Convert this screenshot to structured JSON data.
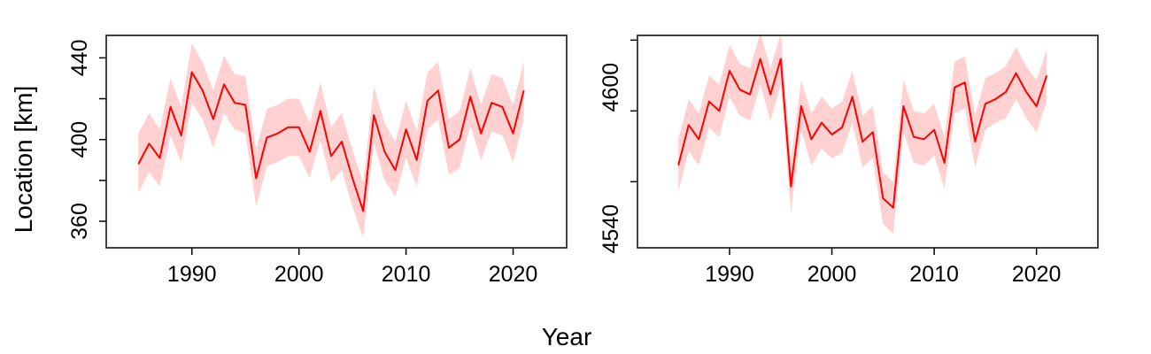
{
  "figure": {
    "ylabel": "Location [km]",
    "xlabel": "Year",
    "line_color": "#ff0000",
    "band_color": "#ffb3b3"
  },
  "chart_data": [
    {
      "type": "line",
      "xlim": [
        1982,
        2025
      ],
      "ylim": [
        347,
        451
      ],
      "xticks": [
        1990,
        2000,
        2010,
        2020
      ],
      "yticks": [
        360,
        400,
        440
      ],
      "x": [
        1985,
        1986,
        1987,
        1988,
        1989,
        1990,
        1991,
        1992,
        1993,
        1994,
        1995,
        1996,
        1997,
        1998,
        1999,
        2000,
        2001,
        2002,
        2003,
        2004,
        2005,
        2006,
        2007,
        2008,
        2009,
        2010,
        2011,
        2012,
        2013,
        2014,
        2015,
        2016,
        2017,
        2018,
        2019,
        2020,
        2021
      ],
      "series": [
        {
          "y": [
            388,
            398,
            391,
            416,
            402,
            433,
            424,
            410,
            427,
            418,
            417,
            381,
            401,
            403,
            406,
            406,
            394,
            414,
            392,
            399,
            381,
            365,
            412,
            394,
            385,
            405,
            390,
            419,
            424,
            396,
            400,
            421,
            403,
            418,
            416,
            403,
            424
          ],
          "lower": [
            374,
            384,
            377,
            402,
            389,
            418,
            410,
            396,
            413,
            405,
            403,
            367,
            387,
            389,
            392,
            392,
            381,
            400,
            379,
            385,
            367,
            352,
            398,
            380,
            372,
            391,
            377,
            405,
            410,
            383,
            386,
            407,
            390,
            404,
            402,
            389,
            410
          ],
          "upper": [
            403,
            413,
            405,
            430,
            416,
            447,
            438,
            424,
            441,
            432,
            431,
            395,
            415,
            417,
            420,
            420,
            408,
            428,
            406,
            413,
            395,
            379,
            426,
            408,
            399,
            419,
            404,
            433,
            438,
            410,
            414,
            435,
            417,
            432,
            430,
            417,
            438
          ]
        }
      ]
    },
    {
      "type": "line",
      "xlim": [
        1981,
        2026
      ],
      "ylim": [
        4532,
        4622
      ],
      "xticks": [
        1990,
        2000,
        2010,
        2020
      ],
      "yticks": [
        4540,
        4600
      ],
      "x": [
        1985,
        1986,
        1987,
        1988,
        1989,
        1990,
        1991,
        1992,
        1993,
        1994,
        1995,
        1996,
        1997,
        1998,
        1999,
        2000,
        2001,
        2002,
        2003,
        2004,
        2005,
        2006,
        2007,
        2008,
        2009,
        2010,
        2011,
        2012,
        2013,
        2014,
        2015,
        2016,
        2017,
        2018,
        2019,
        2020,
        2021
      ],
      "series": [
        {
          "y": [
            4567,
            4584,
            4578,
            4594,
            4590,
            4607,
            4599,
            4597,
            4612,
            4597,
            4612,
            4558,
            4592,
            4578,
            4585,
            4580,
            4583,
            4596,
            4577,
            4581,
            4553,
            4549,
            4592,
            4579,
            4578,
            4582,
            4568,
            4600,
            4602,
            4577,
            4593,
            4595,
            4598,
            4606,
            4598,
            4592,
            4605
          ],
          "lower": [
            4556,
            4573,
            4567,
            4583,
            4579,
            4596,
            4588,
            4586,
            4601,
            4586,
            4601,
            4547,
            4582,
            4567,
            4574,
            4570,
            4572,
            4585,
            4566,
            4570,
            4542,
            4538,
            4581,
            4568,
            4567,
            4571,
            4557,
            4589,
            4591,
            4566,
            4582,
            4585,
            4587,
            4595,
            4587,
            4581,
            4594
          ],
          "upper": [
            4578,
            4595,
            4589,
            4605,
            4601,
            4618,
            4610,
            4608,
            4623,
            4608,
            4623,
            4569,
            4603,
            4589,
            4596,
            4591,
            4594,
            4607,
            4588,
            4592,
            4564,
            4560,
            4603,
            4590,
            4589,
            4593,
            4579,
            4611,
            4613,
            4588,
            4604,
            4606,
            4609,
            4617,
            4609,
            4603,
            4616
          ]
        }
      ]
    }
  ]
}
